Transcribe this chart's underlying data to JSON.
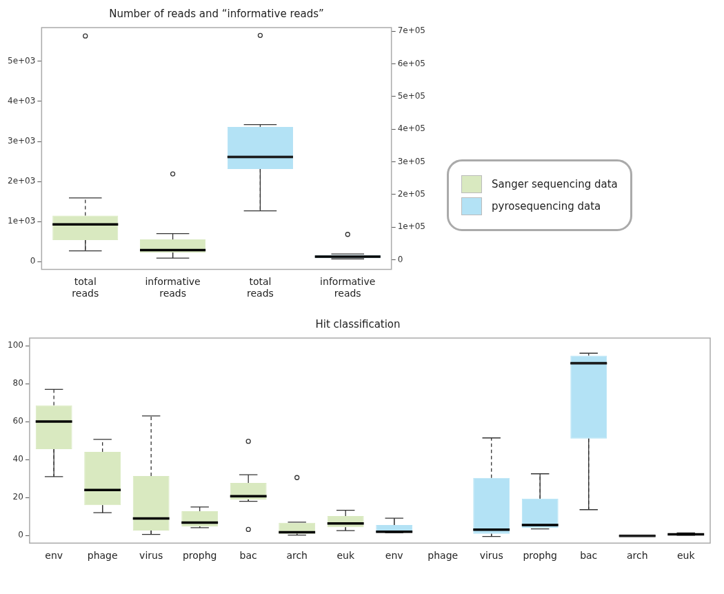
{
  "chart_data": [
    {
      "type": "box",
      "title": "Number of reads and “informative reads”",
      "categories": [
        "total reads",
        "informative reads",
        "total reads",
        "informative reads"
      ],
      "legend": "right",
      "ylim": [
        -190,
        5840
      ],
      "yticks": [
        0,
        {
          "value": 1000,
          "label": "1e+03"
        },
        {
          "value": 2000,
          "label": "2e+03"
        },
        {
          "value": 3000,
          "label": "3e+03"
        },
        {
          "value": 4000,
          "label": "4e+03"
        },
        {
          "value": 5000,
          "label": "5e+03"
        }
      ],
      "y2lim": [
        -29000,
        711000
      ],
      "y2ticks": [
        0,
        {
          "value": 100000,
          "label": "1e+05"
        },
        {
          "value": 200000,
          "label": "2e+05"
        },
        {
          "value": 300000,
          "label": "3e+05"
        },
        {
          "value": 400000,
          "label": "4e+05"
        },
        {
          "value": 500000,
          "label": "5e+05"
        },
        {
          "value": 600000,
          "label": "6e+05"
        },
        {
          "value": 700000,
          "label": "7e+05"
        }
      ],
      "series": [
        {
          "name": "Sanger sequencing data",
          "color": "#d9e9c0",
          "boxes": [
            {
              "low": 270,
              "q1": 540,
              "median": 930,
              "q3": 1150,
              "high": 1590,
              "outliers": [
                5630
              ]
            },
            {
              "low": 90,
              "q1": 230,
              "median": 290,
              "q3": 555,
              "high": 700,
              "outliers": [
                2190
              ]
            },
            null,
            null
          ]
        },
        {
          "name": "pyrosequencing data",
          "color": "#b3e2f5",
          "axis": "y2",
          "boxes": [
            null,
            null,
            {
              "low": 150000,
              "q1": 278000,
              "median": 315000,
              "q3": 407000,
              "high": 414000,
              "outliers": [
                687000
              ]
            },
            {
              "low": 3000,
              "q1": 5000,
              "median": 10000,
              "q3": 15000,
              "high": 18000,
              "outliers": [
                78000
              ]
            }
          ]
        }
      ]
    },
    {
      "type": "box",
      "title": "Hit classification",
      "categories": [
        "env",
        "phage",
        "virus",
        "prophg",
        "bac",
        "arch",
        "euk",
        "env",
        "phage",
        "virus",
        "prophg",
        "bac",
        "arch",
        "euk"
      ],
      "ylim": [
        -4,
        104
      ],
      "yticks": [
        0,
        20,
        40,
        60,
        80,
        100
      ],
      "series": [
        {
          "color": "#d9e9c0",
          "boxes": [
            {
              "low": 31,
              "q1": 45.5,
              "median": 60,
              "q3": 68.6,
              "high": 77
            },
            {
              "low": 12,
              "q1": 16,
              "median": 24,
              "q3": 44,
              "high": 50.6
            },
            {
              "low": 0.6,
              "q1": 2.6,
              "median": 9,
              "q3": 31.3,
              "high": 63
            },
            {
              "low": 4.1,
              "q1": 4.8,
              "median": 6.8,
              "q3": 12.8,
              "high": 15
            },
            {
              "low": 18,
              "q1": 19,
              "median": 20.7,
              "q3": 27.7,
              "high": 32,
              "outliers": [
                49.6,
                3.2
              ]
            },
            {
              "low": 0.2,
              "q1": 0.9,
              "median": 1.7,
              "q3": 6.7,
              "high": 7,
              "outliers": [
                30.5
              ]
            },
            {
              "low": 2.6,
              "q1": 4.3,
              "median": 6.3,
              "q3": 10.2,
              "high": 13.3
            },
            null,
            null,
            null,
            null,
            null,
            null,
            null
          ]
        },
        {
          "color": "#b3e2f5",
          "boxes": [
            null,
            null,
            null,
            null,
            null,
            null,
            null,
            {
              "low": 1.5,
              "q1": 1.5,
              "median": 2,
              "q3": 5.5,
              "high": 9.1
            },
            null,
            {
              "low": -0.5,
              "q1": 0.9,
              "median": 3.1,
              "q3": 30.3,
              "high": 51.4
            },
            {
              "low": 3.5,
              "q1": 4,
              "median": 5.5,
              "q3": 19.4,
              "high": 32.5
            },
            {
              "low": 13.6,
              "q1": 51,
              "median": 90.7,
              "q3": 94.7,
              "high": 96
            },
            {
              "low": -0.4,
              "q1": -0.3,
              "median": -0.2,
              "q3": -0.1,
              "high": 0
            },
            {
              "low": 0.1,
              "q1": 0.3,
              "median": 0.6,
              "q3": 1.1,
              "high": 1.4
            }
          ]
        }
      ]
    }
  ]
}
